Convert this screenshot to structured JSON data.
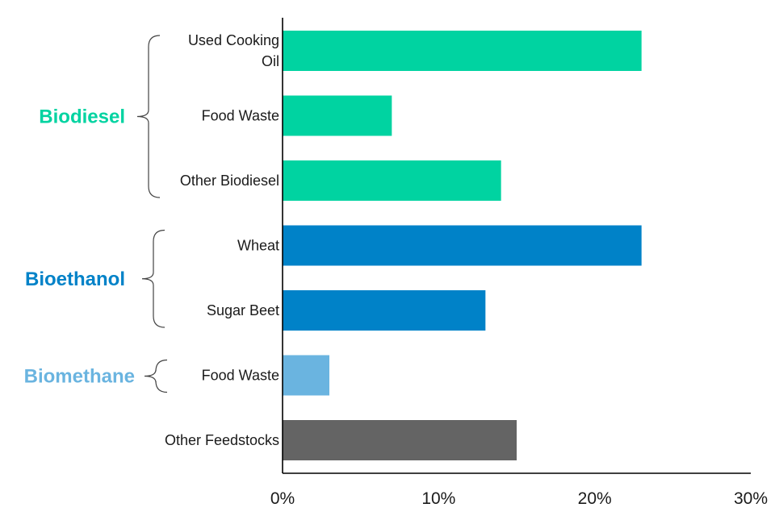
{
  "chart_data": {
    "type": "bar",
    "orientation": "horizontal",
    "title": "",
    "xlabel": "",
    "ylabel": "",
    "xlim": [
      0,
      30
    ],
    "x_ticks": [
      "0%",
      "10%",
      "20%",
      "30%"
    ],
    "grid": false,
    "categories": [
      {
        "label_lines": [
          "Used Cooking",
          "Oil"
        ],
        "value": 23,
        "group": "biodiesel"
      },
      {
        "label_lines": [
          "Food Waste"
        ],
        "value": 7,
        "group": "biodiesel"
      },
      {
        "label_lines": [
          "Other Biodiesel"
        ],
        "value": 14,
        "group": "biodiesel"
      },
      {
        "label_lines": [
          "Wheat"
        ],
        "value": 23,
        "group": "bioethanol"
      },
      {
        "label_lines": [
          "Sugar Beet"
        ],
        "value": 13,
        "group": "bioethanol"
      },
      {
        "label_lines": [
          "Food Waste"
        ],
        "value": 3,
        "group": "biomethane"
      },
      {
        "label_lines": [
          "Other Feedstocks"
        ],
        "value": 15,
        "group": "other"
      }
    ],
    "groups": [
      {
        "key": "biodiesel",
        "label": "Biodiesel",
        "color": "#00d3a1"
      },
      {
        "key": "bioethanol",
        "label": "Bioethanol",
        "color": "#0082c8"
      },
      {
        "key": "biomethane",
        "label": "Biomethane",
        "color": "#6ab4e0"
      },
      {
        "key": "other",
        "label": "",
        "color": "#646464"
      }
    ]
  }
}
